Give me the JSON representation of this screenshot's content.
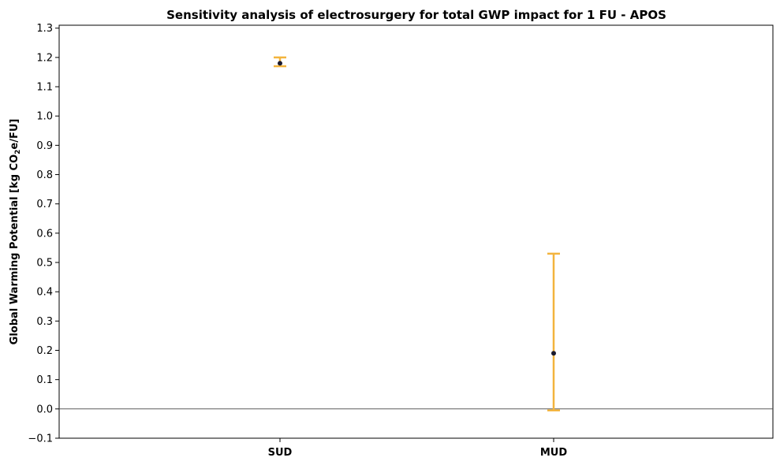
{
  "chart_data": {
    "type": "errorbar",
    "title": "Sensitivity analysis of electrosurgery for total GWP impact for 1 FU - APOS",
    "ylabel_parts": [
      "Global Warming Potential [kg CO",
      "2",
      "e/FU]"
    ],
    "categories": [
      "SUD",
      "MUD"
    ],
    "values": [
      1.18,
      0.19
    ],
    "lower": [
      1.17,
      -0.005
    ],
    "upper": [
      1.2,
      0.53
    ],
    "ylim": [
      -0.1,
      1.31
    ],
    "yticks": [
      "−0.1",
      "0.0",
      "0.1",
      "0.2",
      "0.3",
      "0.4",
      "0.5",
      "0.6",
      "0.7",
      "0.8",
      "0.9",
      "1.0",
      "1.1",
      "1.2",
      "1.3"
    ],
    "ytick_values": [
      -0.1,
      0.0,
      0.1,
      0.2,
      0.3,
      0.4,
      0.5,
      0.6,
      0.7,
      0.8,
      0.9,
      1.0,
      1.1,
      1.2,
      1.3
    ],
    "zero_line": true,
    "grid": false,
    "errorbar_color": "#f3b43d",
    "marker_color": "#1a1a2e"
  }
}
